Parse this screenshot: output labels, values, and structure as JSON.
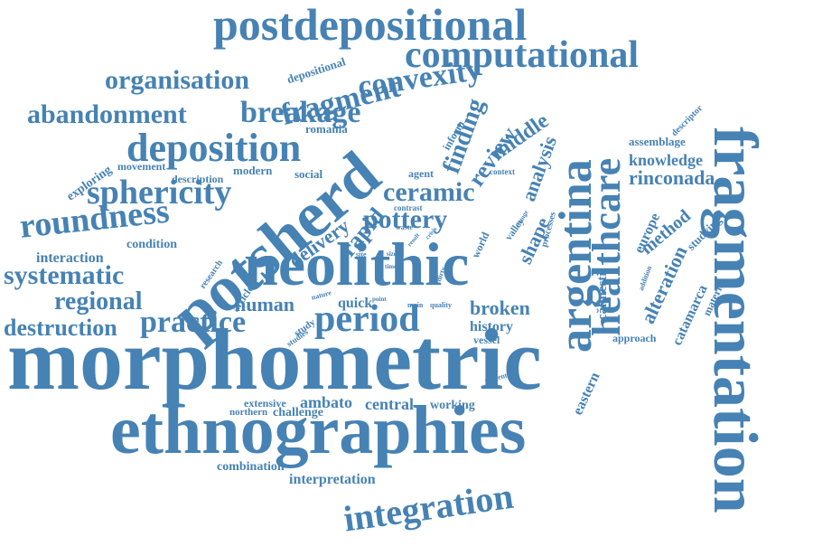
{
  "color": "#4682b4",
  "words": [
    "morphometric",
    "ethnographies",
    "fragmentation",
    "neolithic",
    "potsherd",
    "argentina",
    "healthcare",
    "postdepositional",
    "computational",
    "integration",
    "deposition",
    "period",
    "practice",
    "sphericity",
    "roundness",
    "fragment",
    "convexity",
    "breakage",
    "abandonment",
    "organisation",
    "ceramic",
    "pottery",
    "systematic",
    "regional",
    "destruction",
    "human",
    "broken",
    "finding",
    "review",
    "analysis",
    "middle",
    "rinconada",
    "knowledge",
    "assemblage",
    "method",
    "alteration",
    "catamarca",
    "shape",
    "rapid",
    "delivery",
    "interaction",
    "condition",
    "quick",
    "central",
    "ambato",
    "working",
    "challenge",
    "extensive",
    "northern",
    "combination",
    "interpretation",
    "history",
    "vessel",
    "eastern",
    "approach",
    "europe",
    "material",
    "studying",
    "călinești",
    "depositional",
    "romania",
    "social",
    "modern",
    "description",
    "movement",
    "exploring",
    "agent",
    "inform",
    "context",
    "descriptor",
    "contrast",
    "world",
    "valley",
    "processes",
    "article",
    "research",
    "study",
    "studies",
    "nature",
    "point",
    "main",
    "quality",
    "result",
    "crisis",
    "role",
    "site",
    "size",
    "time",
    "dirty",
    "waste",
    "change",
    "addition",
    "present"
  ]
}
